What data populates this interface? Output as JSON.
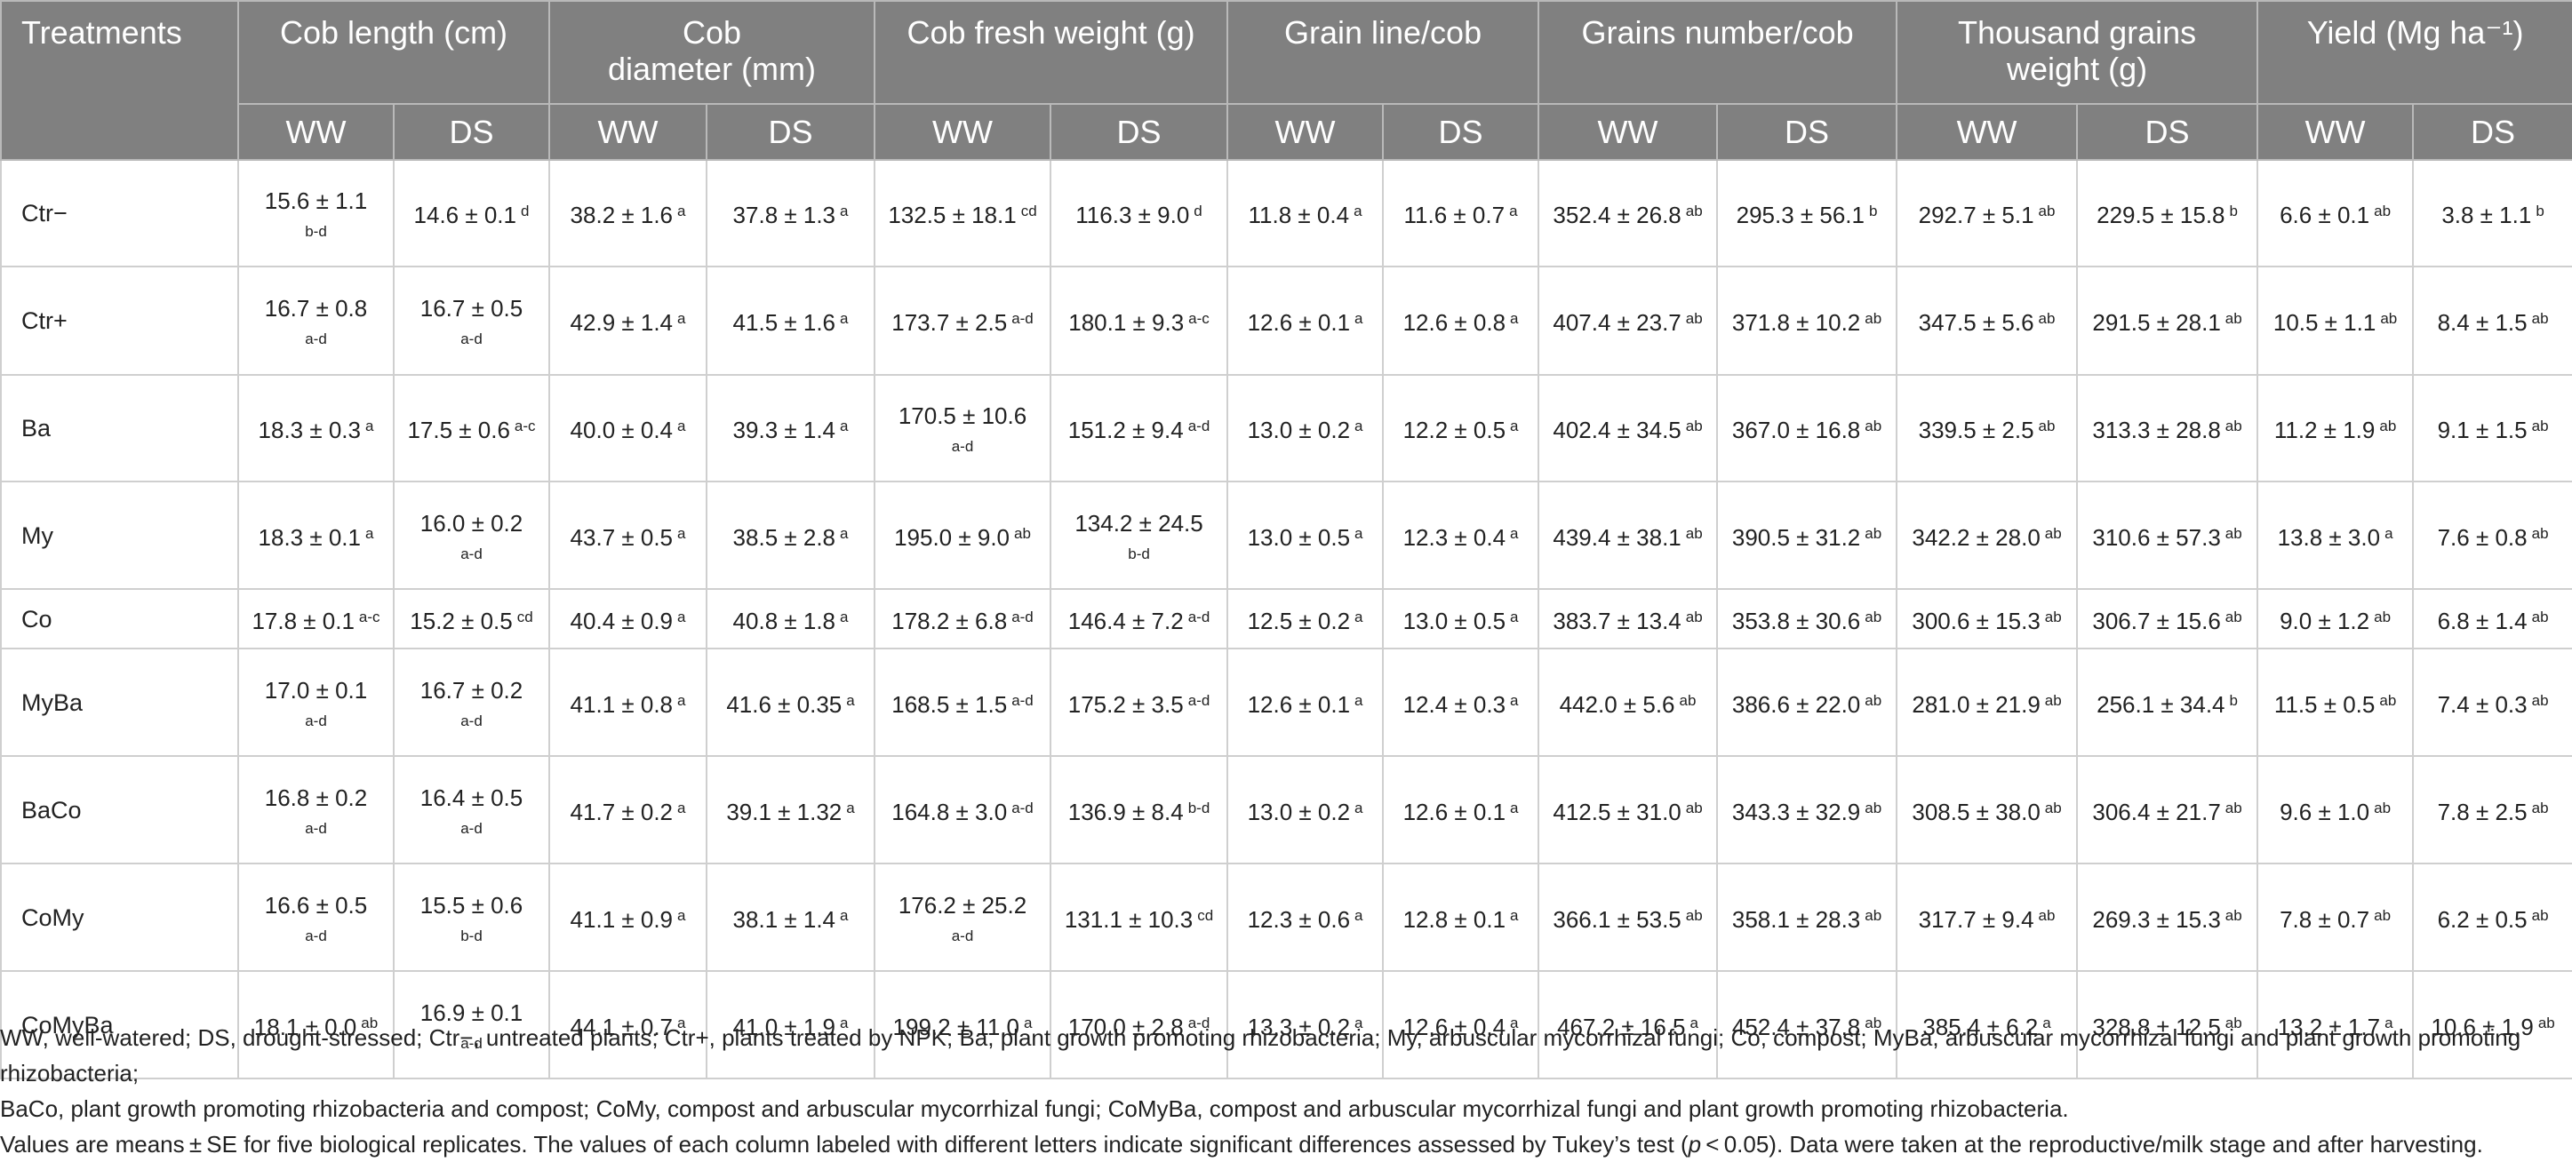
{
  "table": {
    "header_treatments": "Treatments",
    "groups": [
      {
        "l1": "Cob length (cm)",
        "l2": ""
      },
      {
        "l1": "Cob",
        "l2": "diameter (mm)"
      },
      {
        "l1": "Cob fresh weight (g)",
        "l2": ""
      },
      {
        "l1": "Grain line/cob",
        "l2": ""
      },
      {
        "l1": "Grains number/cob",
        "l2": ""
      },
      {
        "l1": "Thousand grains",
        "l2": "weight (g)"
      },
      {
        "l1": "Yield (Mg ha⁻¹)",
        "l2": ""
      }
    ],
    "sub_ww": "WW",
    "sub_ds": "DS",
    "rows": [
      {
        "name": "Ctr−",
        "cells": [
          {
            "v": "15.6 ± 1.1",
            "s": "b-d",
            "below": true
          },
          {
            "v": "14.6 ± 0.1",
            "s": "d"
          },
          {
            "v": "38.2 ± 1.6",
            "s": "a"
          },
          {
            "v": "37.8 ± 1.3",
            "s": "a"
          },
          {
            "v": "132.5 ± 18.1",
            "s": "cd"
          },
          {
            "v": "116.3 ± 9.0",
            "s": "d"
          },
          {
            "v": "11.8 ± 0.4",
            "s": "a"
          },
          {
            "v": "11.6 ± 0.7",
            "s": "a"
          },
          {
            "v": "352.4 ± 26.8",
            "s": "ab"
          },
          {
            "v": "295.3 ± 56.1",
            "s": "b"
          },
          {
            "v": "292.7 ± 5.1",
            "s": "ab"
          },
          {
            "v": "229.5 ± 15.8",
            "s": "b"
          },
          {
            "v": "6.6 ± 0.1",
            "s": "ab"
          },
          {
            "v": "3.8 ± 1.1",
            "s": "b"
          }
        ]
      },
      {
        "name": "Ctr+",
        "cells": [
          {
            "v": "16.7 ± 0.8",
            "s": "a-d",
            "below": true
          },
          {
            "v": "16.7 ± 0.5",
            "s": "a-d",
            "below": true
          },
          {
            "v": "42.9 ± 1.4",
            "s": "a"
          },
          {
            "v": "41.5 ± 1.6",
            "s": "a"
          },
          {
            "v": "173.7 ± 2.5",
            "s": "a-d"
          },
          {
            "v": "180.1 ± 9.3",
            "s": "a-c"
          },
          {
            "v": "12.6 ± 0.1",
            "s": "a"
          },
          {
            "v": "12.6 ± 0.8",
            "s": "a"
          },
          {
            "v": "407.4 ± 23.7",
            "s": "ab"
          },
          {
            "v": "371.8 ± 10.2",
            "s": "ab"
          },
          {
            "v": "347.5 ± 5.6",
            "s": "ab"
          },
          {
            "v": "291.5 ± 28.1",
            "s": "ab"
          },
          {
            "v": "10.5 ± 1.1",
            "s": "ab"
          },
          {
            "v": "8.4 ± 1.5",
            "s": "ab"
          }
        ]
      },
      {
        "name": "Ba",
        "cells": [
          {
            "v": "18.3 ± 0.3",
            "s": "a"
          },
          {
            "v": "17.5 ± 0.6",
            "s": "a-c"
          },
          {
            "v": "40.0 ± 0.4",
            "s": "a"
          },
          {
            "v": "39.3 ± 1.4",
            "s": "a"
          },
          {
            "v": "170.5 ± 10.6",
            "s": "a-d",
            "below": true
          },
          {
            "v": "151.2 ± 9.4",
            "s": "a-d"
          },
          {
            "v": "13.0 ± 0.2",
            "s": "a"
          },
          {
            "v": "12.2 ± 0.5",
            "s": "a"
          },
          {
            "v": "402.4 ± 34.5",
            "s": "ab"
          },
          {
            "v": "367.0 ± 16.8",
            "s": "ab"
          },
          {
            "v": "339.5 ± 2.5",
            "s": "ab"
          },
          {
            "v": "313.3 ± 28.8",
            "s": "ab"
          },
          {
            "v": "11.2 ± 1.9",
            "s": "ab"
          },
          {
            "v": "9.1 ± 1.5",
            "s": "ab"
          }
        ]
      },
      {
        "name": "My",
        "cells": [
          {
            "v": "18.3 ± 0.1",
            "s": "a"
          },
          {
            "v": "16.0 ± 0.2",
            "s": "a-d",
            "below": true
          },
          {
            "v": "43.7 ± 0.5",
            "s": "a"
          },
          {
            "v": "38.5 ± 2.8",
            "s": "a"
          },
          {
            "v": "195.0 ± 9.0",
            "s": "ab"
          },
          {
            "v": "134.2 ± 24.5",
            "s": "b-d",
            "below": true
          },
          {
            "v": "13.0 ± 0.5",
            "s": "a"
          },
          {
            "v": "12.3 ± 0.4",
            "s": "a"
          },
          {
            "v": "439.4 ± 38.1",
            "s": "ab"
          },
          {
            "v": "390.5 ± 31.2",
            "s": "ab"
          },
          {
            "v": "342.2 ± 28.0",
            "s": "ab"
          },
          {
            "v": "310.6 ± 57.3",
            "s": "ab"
          },
          {
            "v": "13.8 ± 3.0",
            "s": "a"
          },
          {
            "v": "7.6 ± 0.8",
            "s": "ab"
          }
        ]
      },
      {
        "name": "Co",
        "cells": [
          {
            "v": "17.8 ± 0.1",
            "s": "a-c"
          },
          {
            "v": "15.2 ± 0.5",
            "s": "cd"
          },
          {
            "v": "40.4 ± 0.9",
            "s": "a"
          },
          {
            "v": "40.8 ± 1.8",
            "s": "a"
          },
          {
            "v": "178.2 ± 6.8",
            "s": "a-d"
          },
          {
            "v": "146.4 ± 7.2",
            "s": "a-d"
          },
          {
            "v": "12.5 ± 0.2",
            "s": "a"
          },
          {
            "v": "13.0 ± 0.5",
            "s": "a"
          },
          {
            "v": "383.7 ± 13.4",
            "s": "ab"
          },
          {
            "v": "353.8 ± 30.6",
            "s": "ab"
          },
          {
            "v": "300.6 ± 15.3",
            "s": "ab"
          },
          {
            "v": "306.7 ± 15.6",
            "s": "ab"
          },
          {
            "v": "9.0 ± 1.2",
            "s": "ab"
          },
          {
            "v": "6.8 ± 1.4",
            "s": "ab"
          }
        ]
      },
      {
        "name": "MyBa",
        "cells": [
          {
            "v": "17.0 ± 0.1",
            "s": "a-d",
            "below": true
          },
          {
            "v": "16.7 ± 0.2",
            "s": "a-d",
            "below": true
          },
          {
            "v": "41.1 ± 0.8",
            "s": "a"
          },
          {
            "v": "41.6 ± 0.35",
            "s": "a"
          },
          {
            "v": "168.5 ± 1.5",
            "s": "a-d"
          },
          {
            "v": "175.2 ± 3.5",
            "s": "a-d"
          },
          {
            "v": "12.6 ± 0.1",
            "s": "a"
          },
          {
            "v": "12.4 ± 0.3",
            "s": "a"
          },
          {
            "v": "442.0 ± 5.6",
            "s": "ab"
          },
          {
            "v": "386.6 ± 22.0",
            "s": "ab"
          },
          {
            "v": "281.0 ± 21.9",
            "s": "ab"
          },
          {
            "v": "256.1 ± 34.4",
            "s": "b"
          },
          {
            "v": "11.5 ± 0.5",
            "s": "ab"
          },
          {
            "v": "7.4 ± 0.3",
            "s": "ab"
          }
        ]
      },
      {
        "name": "BaCo",
        "cells": [
          {
            "v": "16.8 ± 0.2",
            "s": "a-d",
            "below": true
          },
          {
            "v": "16.4 ± 0.5",
            "s": "a-d",
            "below": true
          },
          {
            "v": "41.7 ± 0.2",
            "s": "a"
          },
          {
            "v": "39.1 ± 1.32",
            "s": "a"
          },
          {
            "v": "164.8 ± 3.0",
            "s": "a-d"
          },
          {
            "v": "136.9 ± 8.4",
            "s": "b-d"
          },
          {
            "v": "13.0 ± 0.2",
            "s": "a"
          },
          {
            "v": "12.6 ± 0.1",
            "s": "a"
          },
          {
            "v": "412.5 ± 31.0",
            "s": "ab"
          },
          {
            "v": "343.3 ± 32.9",
            "s": "ab"
          },
          {
            "v": "308.5 ± 38.0",
            "s": "ab"
          },
          {
            "v": "306.4 ± 21.7",
            "s": "ab"
          },
          {
            "v": "9.6 ± 1.0",
            "s": "ab"
          },
          {
            "v": "7.8 ± 2.5",
            "s": "ab"
          }
        ]
      },
      {
        "name": "CoMy",
        "cells": [
          {
            "v": "16.6 ± 0.5",
            "s": "a-d",
            "below": true
          },
          {
            "v": "15.5 ± 0.6",
            "s": "b-d",
            "below": true
          },
          {
            "v": "41.1 ± 0.9",
            "s": "a"
          },
          {
            "v": "38.1 ± 1.4",
            "s": "a"
          },
          {
            "v": "176.2 ± 25.2",
            "s": "a-d",
            "below": true
          },
          {
            "v": "131.1 ± 10.3",
            "s": "cd"
          },
          {
            "v": "12.3 ± 0.6",
            "s": "a"
          },
          {
            "v": "12.8 ± 0.1",
            "s": "a"
          },
          {
            "v": "366.1 ± 53.5",
            "s": "ab"
          },
          {
            "v": "358.1 ± 28.3",
            "s": "ab"
          },
          {
            "v": "317.7 ± 9.4",
            "s": "ab"
          },
          {
            "v": "269.3 ± 15.3",
            "s": "ab"
          },
          {
            "v": "7.8 ± 0.7",
            "s": "ab"
          },
          {
            "v": "6.2 ± 0.5",
            "s": "ab"
          }
        ]
      },
      {
        "name": "CoMyBa",
        "cells": [
          {
            "v": "18.1 ± 0.0",
            "s": "ab"
          },
          {
            "v": "16.9 ± 0.1",
            "s": "a-d",
            "below": true
          },
          {
            "v": "44.1 ± 0.7",
            "s": "a"
          },
          {
            "v": "41.0 ± 1.9",
            "s": "a"
          },
          {
            "v": "199.2 ± 11.0",
            "s": "a"
          },
          {
            "v": "170.0 ± 2.8",
            "s": "a-d"
          },
          {
            "v": "13.3 ± 0.2",
            "s": "a"
          },
          {
            "v": "12.6 ± 0.4",
            "s": "a"
          },
          {
            "v": "467.2 ± 16.5",
            "s": "a"
          },
          {
            "v": "452.4 ± 37.8",
            "s": "ab"
          },
          {
            "v": "385.4 ± 6.2",
            "s": "a"
          },
          {
            "v": "328.8 ± 12.5",
            "s": "ab"
          },
          {
            "v": "13.2 ± 1.7",
            "s": "a"
          },
          {
            "v": "10.6 ± 1.9",
            "s": "ab"
          }
        ]
      }
    ]
  },
  "notes": {
    "line1": "WW, well-watered; DS, drought-stressed; Ctr−, untreated plants; Ctr+, plants treated by NPK; Ba, plant growth promoting rhizobacteria; My, arbuscular mycorrhizal fungi; Co, compost; MyBa, arbuscular mycorrhizal fungi and plant growth promoting rhizobacteria;",
    "line2": "BaCo, plant growth promoting rhizobacteria and compost; CoMy, compost and arbuscular mycorrhizal fungi; CoMyBa, compost and arbuscular mycorrhizal fungi and plant growth promoting rhizobacteria.",
    "line3_pre": "Values are means ± SE for five biological replicates. The values of each column labeled with different letters indicate significant differences assessed by Tukey’s test (",
    "line3_p": "p",
    "line3_post": " < 0.05). Data were taken at the reproductive/milk stage and after harvesting."
  }
}
